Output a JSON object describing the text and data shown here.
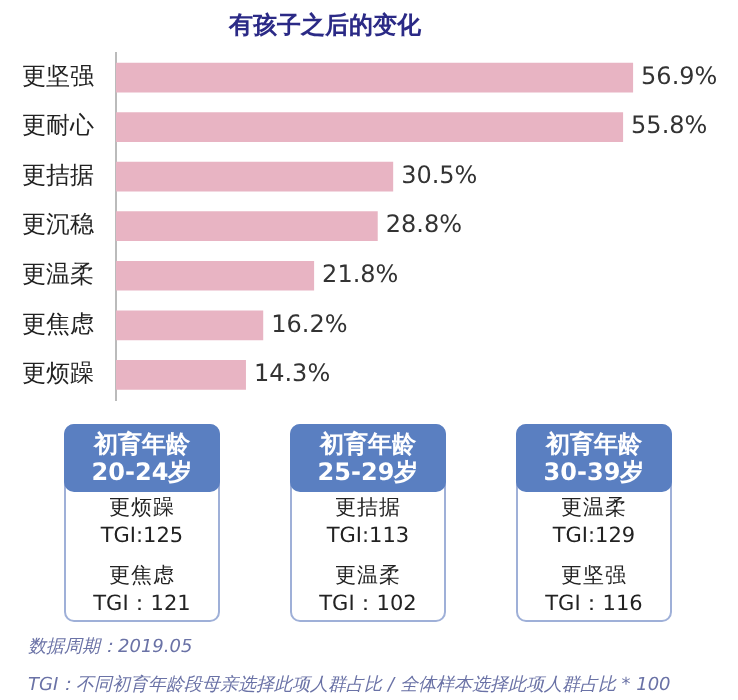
{
  "chart_data": [
    {
      "type": "bar",
      "orientation": "horizontal",
      "title": "有孩子之后的变化",
      "categories": [
        "更坚强",
        "更耐心",
        "更拮据",
        "更沉稳",
        "更温柔",
        "更焦虑",
        "更烦躁"
      ],
      "values": [
        56.9,
        55.8,
        30.5,
        28.8,
        21.8,
        16.2,
        14.3
      ],
      "value_labels": [
        "56.9%",
        "55.8%",
        "30.5%",
        "28.8%",
        "21.8%",
        "16.2%",
        "14.3%"
      ],
      "color": "#e8b4c3",
      "xlim": [
        0,
        57
      ],
      "tick_labels": "y",
      "annotations": [
        "数据周期：2019.05",
        "TGI：不同初育年龄段母亲选择此项人群占比 / 全体样本选择此项人群占比 * 100"
      ]
    },
    {
      "type": "other",
      "categories": [
        "初育年龄\n20-24岁",
        "初育年龄\n25-29岁",
        "初育年龄\n30-39岁"
      ],
      "annotations": [
        "更烦躁",
        "TGI:125",
        "更焦虑",
        "TGI：121",
        "更拮据",
        "TGI:113",
        "更温柔",
        "TGI：102",
        "更温柔",
        "TGI:129",
        "更坚强",
        "TGI：116"
      ]
    }
  ]
}
